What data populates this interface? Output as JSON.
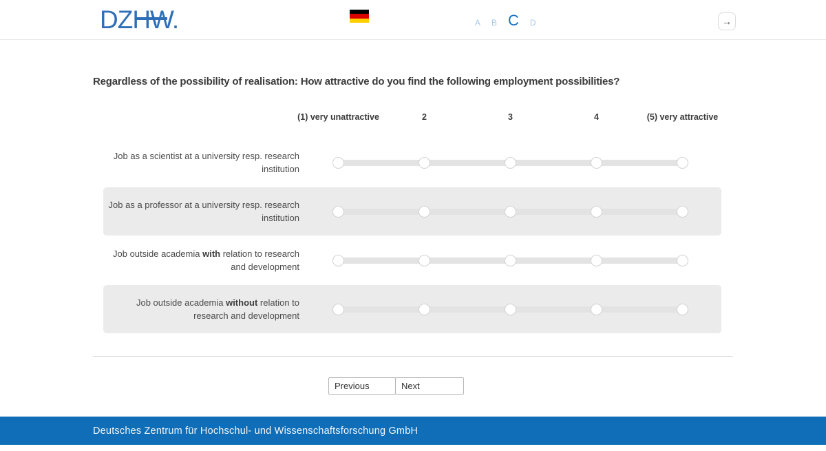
{
  "header": {
    "logo_text": "DZHW.",
    "sections": [
      {
        "label": "A",
        "active": false
      },
      {
        "label": "B",
        "active": false
      },
      {
        "label": "C",
        "active": true
      },
      {
        "label": "D",
        "active": false
      }
    ],
    "language_flag": "german-flag",
    "arrow_icon": "→"
  },
  "question": {
    "title": "Regardless of the possibility of realisation: How attractive do you find the following employment possibilities?"
  },
  "scale": {
    "options": [
      "(1) very unattractive",
      "2",
      "3",
      "4",
      "(5) very attractive"
    ]
  },
  "rows": [
    {
      "pre": "Job as a scientist at a university resp. research institution",
      "bold": "",
      "post": "",
      "shaded": false,
      "selected": null
    },
    {
      "pre": "Job as a professor at a university resp. research institution",
      "bold": "",
      "post": "",
      "shaded": true,
      "selected": null
    },
    {
      "pre": "Job outside academia ",
      "bold": "with",
      "post": " relation to research and development",
      "shaded": false,
      "selected": null
    },
    {
      "pre": "Job outside academia ",
      "bold": "without",
      "post": " relation to research and development",
      "shaded": true,
      "selected": null
    }
  ],
  "buttons": {
    "previous": "Previous",
    "next": "Next"
  },
  "footer": {
    "text": "Deutsches Zentrum für Hochschul- und Wissenschaftsforschung GmbH"
  },
  "colors": {
    "brand_blue": "#2e6fb7",
    "active_tab_blue": "#1c6fc0",
    "inactive_tab_blue": "#a9c9ea",
    "footer_blue": "#0f6eb7",
    "row_shade": "#ebebeb",
    "track_gray": "#e3e3e3"
  }
}
